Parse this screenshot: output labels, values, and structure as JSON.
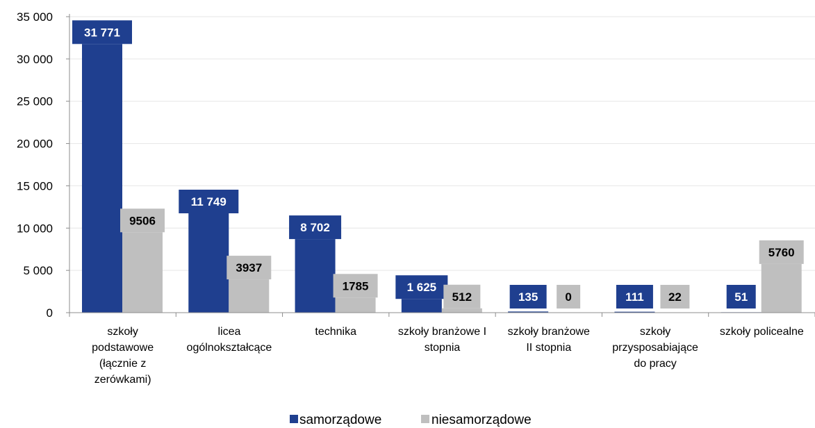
{
  "chart_data": {
    "type": "bar",
    "categories": [
      "szkoły podstawowe (łącznie z zerówkami)",
      "licea ogólnokształcące",
      "technika",
      "szkoły branżowe I stopnia",
      "szkoły branżowe II stopnia",
      "szkoły przysposabiające do pracy",
      "szkoły policealne"
    ],
    "category_lines": [
      [
        "szkoły",
        "podstawowe",
        "(łącznie z",
        "zerówkami)"
      ],
      [
        "licea",
        "ogólnokształcące"
      ],
      [
        "technika"
      ],
      [
        "szkoły branżowe I",
        "stopnia"
      ],
      [
        "szkoły branżowe",
        "II stopnia"
      ],
      [
        "szkoły",
        "przysposabiające",
        "do pracy"
      ],
      [
        "szkoły policealne"
      ]
    ],
    "series": [
      {
        "name": "samorządowe",
        "color": "#1f3f8f",
        "values": [
          31771,
          11749,
          8702,
          1625,
          135,
          111,
          51
        ],
        "labels": [
          "31 771",
          "11 749",
          "8 702",
          "1 625",
          "135",
          "111",
          "51"
        ]
      },
      {
        "name": "niesamorządowe",
        "color": "#bfbfbf",
        "values": [
          9506,
          3937,
          1785,
          512,
          0,
          22,
          5760
        ],
        "labels": [
          "9506",
          "3937",
          "1785",
          "512",
          "0",
          "22",
          "5760"
        ]
      }
    ],
    "y_ticks": [
      0,
      5000,
      10000,
      15000,
      20000,
      25000,
      30000,
      35000
    ],
    "y_tick_labels": [
      "0",
      "5 000",
      "10 000",
      "15 000",
      "20 000",
      "25 000",
      "30 000",
      "35 000"
    ],
    "ylim": [
      0,
      35000
    ],
    "grid": true,
    "legend_position": "bottom",
    "title": "",
    "xlabel": "",
    "ylabel": ""
  }
}
